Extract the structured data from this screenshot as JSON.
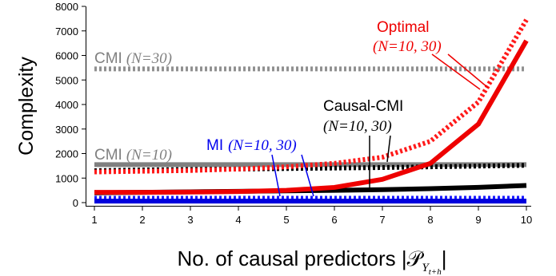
{
  "chart_data": {
    "type": "line",
    "title": "",
    "xlabel": "No. of causal predictors |𝒫",
    "xlabel_sub": "Y",
    "xlabel_subsub": "t+h",
    "xlabel_end": "|",
    "ylabel": "Complexity",
    "x": [
      1,
      2,
      3,
      4,
      5,
      6,
      7,
      8,
      9,
      10
    ],
    "xlim": [
      1,
      10
    ],
    "ylim": [
      0,
      8000
    ],
    "yticks": [
      0,
      1000,
      2000,
      3000,
      4000,
      5000,
      6000,
      7000,
      8000
    ],
    "grid": false,
    "legend": "none",
    "series": [
      {
        "key": "cmi30",
        "style": "dotted",
        "color": "#909090",
        "values": [
          5450,
          5450,
          5450,
          5450,
          5450,
          5450,
          5450,
          5450,
          5450,
          5450
        ]
      },
      {
        "key": "cmi10",
        "style": "solid",
        "color": "#808080",
        "values": [
          1550,
          1550,
          1550,
          1550,
          1550,
          1550,
          1550,
          1550,
          1550,
          1550
        ]
      },
      {
        "key": "causal30",
        "style": "dotted",
        "color": "#000000",
        "values": [
          1300,
          1330,
          1350,
          1370,
          1390,
          1410,
          1430,
          1460,
          1490,
          1520
        ]
      },
      {
        "key": "causal10",
        "style": "solid",
        "color": "#000000",
        "values": [
          400,
          420,
          440,
          460,
          480,
          500,
          530,
          570,
          620,
          700
        ]
      },
      {
        "key": "mi30",
        "style": "dotted",
        "color": "#1a1aff",
        "values": [
          180,
          180,
          180,
          180,
          180,
          180,
          180,
          180,
          180,
          180
        ]
      },
      {
        "key": "mi10",
        "style": "solid",
        "color": "#0000dd",
        "values": [
          60,
          60,
          60,
          60,
          60,
          60,
          60,
          60,
          60,
          60
        ]
      },
      {
        "key": "opt30",
        "style": "dotted",
        "color": "#ff1a1a",
        "values": [
          1250,
          1280,
          1310,
          1370,
          1460,
          1600,
          1850,
          2500,
          4100,
          7450
        ]
      },
      {
        "key": "opt10",
        "style": "solid",
        "color": "#ee0000",
        "values": [
          420,
          420,
          430,
          450,
          500,
          620,
          950,
          1600,
          3200,
          6600
        ]
      }
    ],
    "annotations": [
      {
        "label": "CMI",
        "param": "(N=30)",
        "color": "#808080"
      },
      {
        "label": "CMI",
        "param": "(N=10)",
        "color": "#808080"
      },
      {
        "label": "Causal-CMI",
        "param": "(N=10, 30)",
        "color": "#000000"
      },
      {
        "label": "MI",
        "param": "(N=10, 30)",
        "color": "#0000ee"
      },
      {
        "label": "Optimal",
        "param": "(N=10, 30)",
        "color": "#ee0000"
      }
    ]
  }
}
